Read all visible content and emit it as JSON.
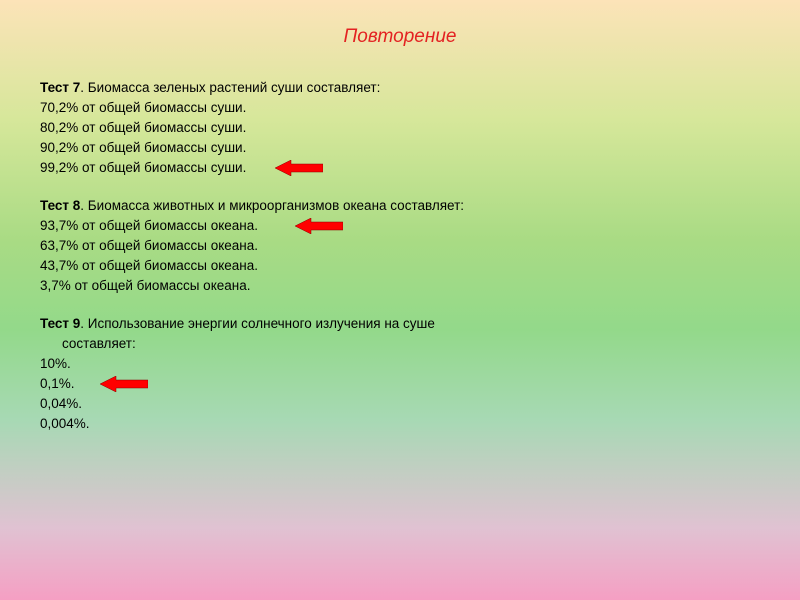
{
  "title": "Повторение",
  "tests": [
    {
      "labelPrefix": "Тест 7",
      "question": ". Биомасса зеленых растений суши составляет:",
      "options": [
        "70,2% от общей биомассы суши.",
        "80,2% от общей биомассы суши.",
        "90,2% от общей биомассы суши.",
        "99,2% от общей биомассы суши."
      ],
      "arrowIndex": 3,
      "arrowLeft": 235
    },
    {
      "labelPrefix": "Тест 8",
      "question": ". Биомасса животных и микроорганизмов океана составляет:",
      "options": [
        "93,7% от общей биомассы океана.",
        "63,7% от общей биомассы океана.",
        "43,7% от общей биомассы океана.",
        "3,7% от общей биомассы океана."
      ],
      "arrowIndex": 0,
      "arrowLeft": 255
    },
    {
      "labelPrefix": "Тест 9",
      "question": ". Использование энергии солнечного излучения на суше",
      "questionCont": "составляет:",
      "options": [
        "10%.",
        "0,1%.",
        "0,04%.",
        "0,004%."
      ],
      "arrowIndex": 1,
      "arrowLeft": 60
    }
  ],
  "arrow": {
    "fill": "#ff0000",
    "stroke": "#8b0000"
  }
}
